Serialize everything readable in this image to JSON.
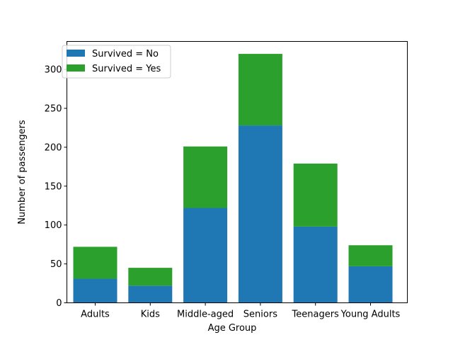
{
  "chart_data": {
    "type": "bar",
    "stacked": true,
    "categories": [
      "Adults",
      "Kids",
      "Middle-aged",
      "Seniors",
      "Teenagers",
      "Young Adults"
    ],
    "series": [
      {
        "name": "Survived = No",
        "values": [
          31,
          22,
          122,
          228,
          98,
          47
        ],
        "color": "#1f77b4"
      },
      {
        "name": "Survived = Yes",
        "values": [
          41,
          23,
          79,
          92,
          81,
          27
        ],
        "color": "#2ca02c"
      }
    ],
    "xlabel": "Age Group",
    "ylabel": "Number of passengers",
    "ylim": [
      0,
      336
    ],
    "yticks": [
      0,
      50,
      100,
      150,
      200,
      250,
      300
    ],
    "grid": false,
    "legend_position": "top-left"
  }
}
